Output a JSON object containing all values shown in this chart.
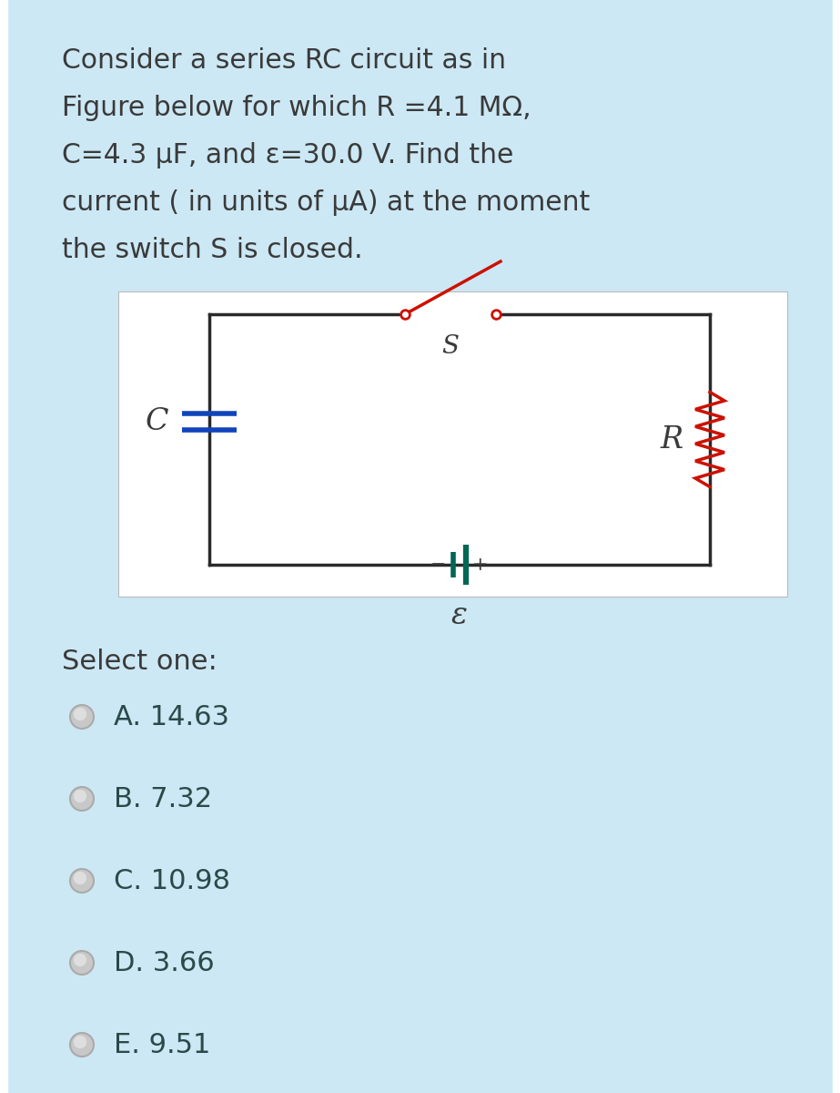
{
  "bg_color": "#cce8f4",
  "white": "#ffffff",
  "text_color": "#3a3a3a",
  "question_text": [
    "Consider a series RC circuit as in",
    "Figure below for which R =4.1 MΩ,",
    "C=4.3 μF, and ε=30.0 V. Find the",
    "current ( in units of μA) at the moment",
    "the switch S is closed."
  ],
  "select_label": "Select one:",
  "options": [
    "A. 14.63",
    "B. 7.32",
    "C. 10.98",
    "D. 3.66",
    "E. 9.51"
  ],
  "circuit_line_color": "#2a2a2a",
  "resistor_color": "#cc1100",
  "capacitor_color": "#1144bb",
  "battery_color": "#006655",
  "switch_color": "#cc1100",
  "option_text_color": "#2a4a4a"
}
